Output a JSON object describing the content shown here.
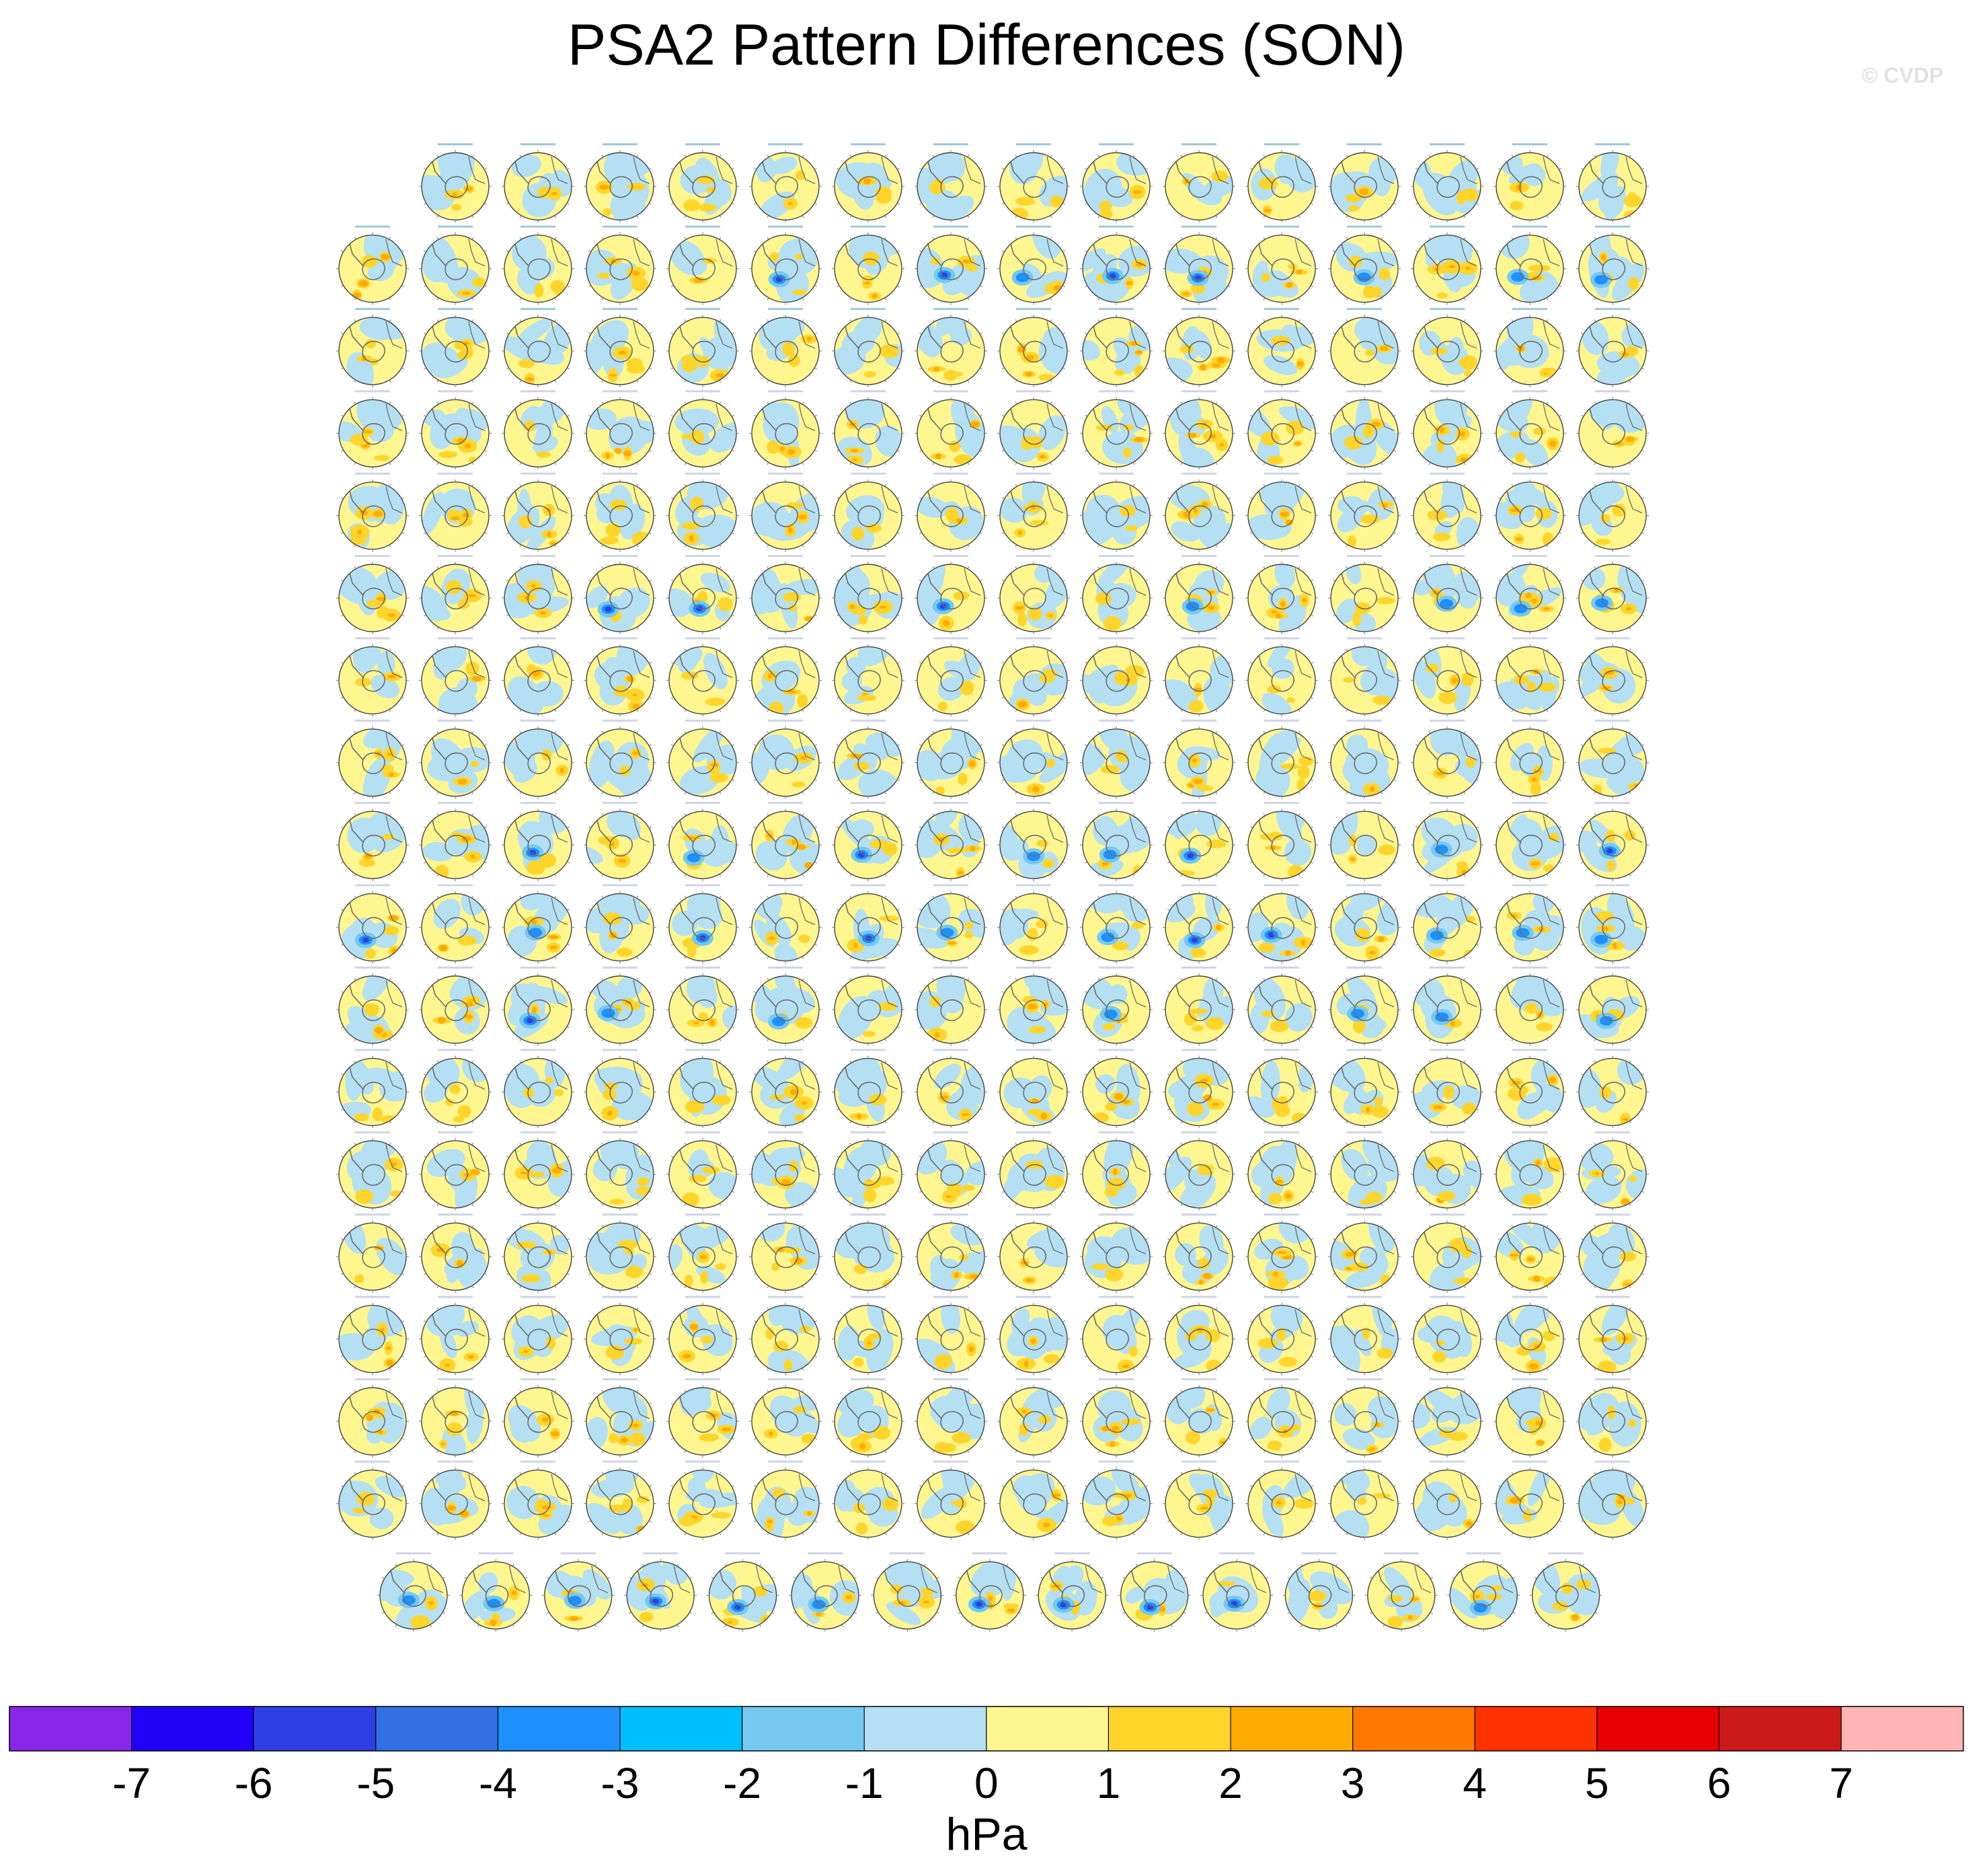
{
  "title": "PSA2 Pattern Differences (SON)",
  "credit": "© CVDP",
  "chart_data": {
    "type": "heatmap",
    "title": "PSA2 Pattern Differences (SON)",
    "projection": "south-polar-stereographic",
    "layout": "small-multiples",
    "row_counts": [
      15,
      16,
      16,
      16,
      16,
      16,
      16,
      16,
      16,
      16,
      16,
      16,
      16,
      16,
      16,
      16,
      16,
      15
    ],
    "colorbar": {
      "label": "hPa",
      "ticks": [
        -7,
        -6,
        -5,
        -4,
        -3,
        -2,
        -1,
        0,
        1,
        2,
        3,
        4,
        5,
        6,
        7
      ],
      "colors": [
        "#8a26e8",
        "#2200f5",
        "#2f3fe6",
        "#3271e3",
        "#1e90ff",
        "#00bfff",
        "#76c8f0",
        "#b5e0f3",
        "#fff68f",
        "#ffd52b",
        "#ffab00",
        "#ff7800",
        "#ff3200",
        "#e60000",
        "#cc1a1a",
        "#ffb5b5"
      ]
    }
  }
}
